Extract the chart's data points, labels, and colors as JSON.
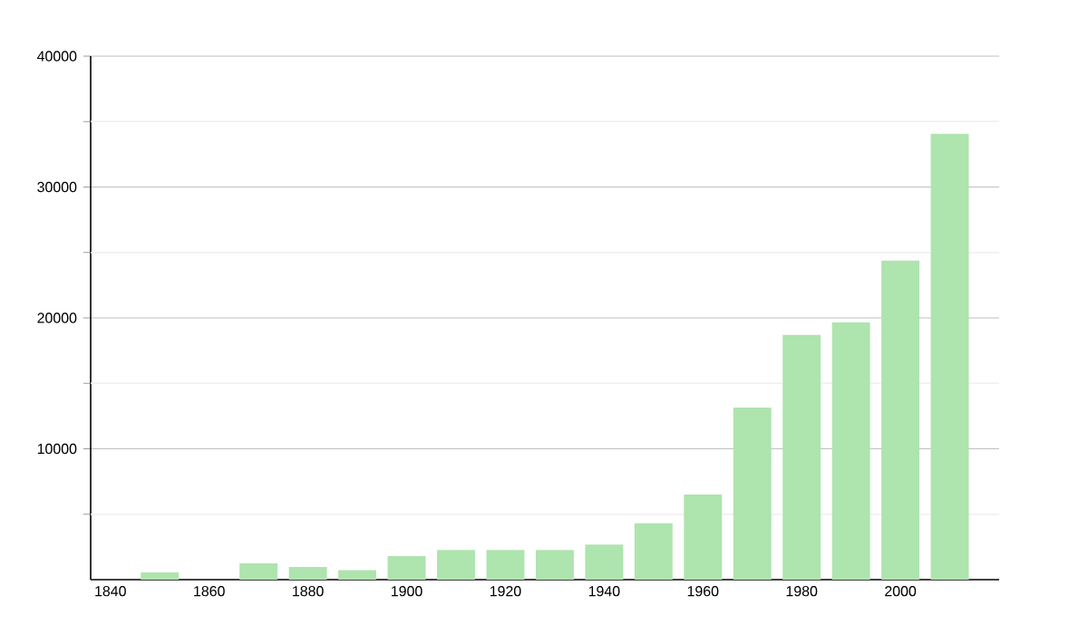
{
  "chart_data": {
    "type": "bar",
    "x": [
      1850,
      1870,
      1880,
      1890,
      1900,
      1910,
      1920,
      1930,
      1940,
      1950,
      1960,
      1970,
      1980,
      1990,
      2000,
      2010
    ],
    "values": [
      550,
      1250,
      970,
      730,
      1800,
      2260,
      2260,
      2260,
      2680,
      4300,
      6500,
      13150,
      18700,
      19660,
      24370,
      34070
    ],
    "color": "#aee4ad",
    "xlim": [
      1836,
      2020
    ],
    "xticks": [
      1840,
      1860,
      1880,
      1900,
      1920,
      1940,
      1960,
      1980,
      2000
    ],
    "ylim": [
      0,
      40000
    ],
    "yticks": [
      {
        "value": 5000,
        "label": null
      },
      10000,
      {
        "value": 15000,
        "label": null
      },
      20000,
      {
        "value": 25000,
        "label": null
      },
      30000,
      {
        "value": 35000,
        "label": null
      },
      40000
    ],
    "grid": "y"
  }
}
